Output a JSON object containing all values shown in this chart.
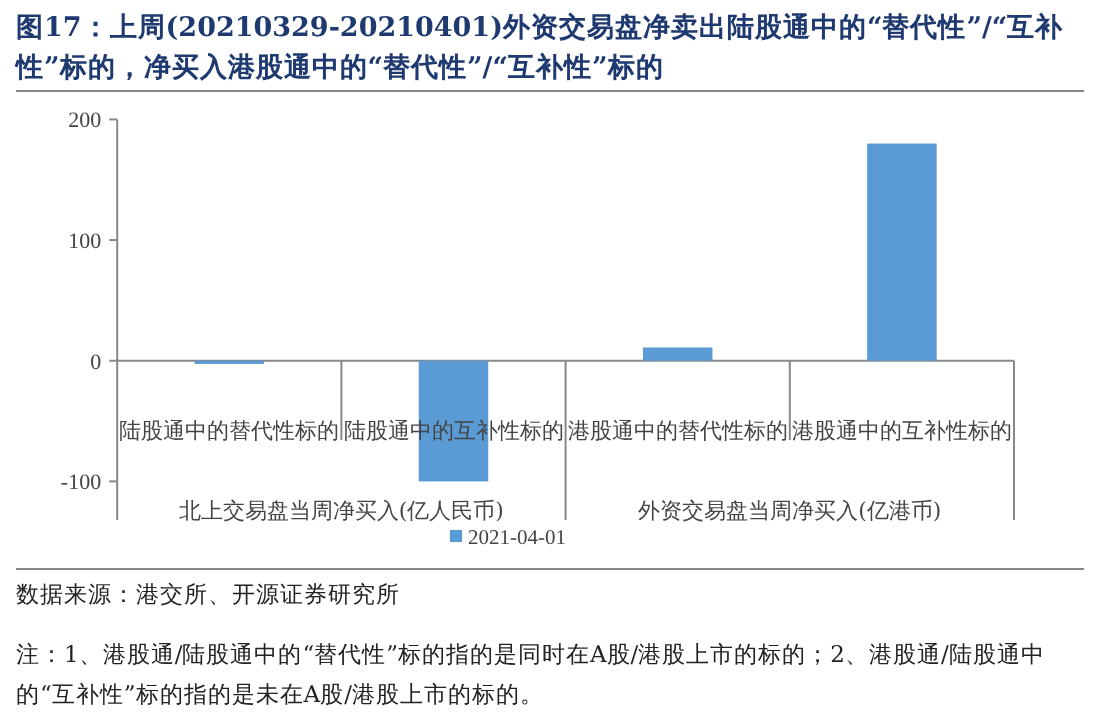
{
  "chart_data": {
    "type": "bar",
    "title": "图17：上周(20210329-20210401)外资交易盘净卖出陆股通中的“替代性”/“互补性”标的，净买入港股通中的“替代性”/“互补性”标的",
    "categories": [
      "陆股通中的替代性标的",
      "陆股通中的互补性标的",
      "港股通中的替代性标的",
      "港股通中的互补性标的"
    ],
    "series": [
      {
        "name": "2021-04-01",
        "color": "#5b9bd5",
        "values": [
          -1,
          -100,
          11,
          180
        ]
      }
    ],
    "ylim": [
      -100,
      200
    ],
    "yticks": [
      -100,
      0,
      100,
      200
    ],
    "legend": "bottom",
    "annotations": [
      "北上交易盘当周净买入(亿人民币)",
      "外资交易盘当周净买入(亿港币)",
      "数据来源：港交所、开源证券研究所",
      "注：1、港股通/陆股通中的“替代性”标的指的是同时在A股/港股上市的标的；2、港股通/陆股通中的“互补性”标的指的是未在A股/港股上市的标的。"
    ]
  }
}
